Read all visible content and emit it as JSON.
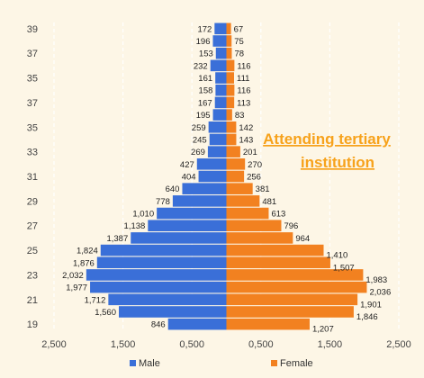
{
  "chart_data": {
    "type": "bar",
    "orientation": "horizontal-diverging",
    "y_categories": [
      "19",
      "",
      "21",
      "",
      "23",
      "",
      "25",
      "",
      "27",
      "",
      "29",
      "",
      "31",
      "",
      "33",
      "",
      "35",
      "",
      "37",
      "",
      "35",
      "",
      "37",
      "",
      "39"
    ],
    "series": [
      {
        "name": "Male",
        "color": "#3a6fd8",
        "values": [
          846,
          1560,
          1712,
          1977,
          2032,
          1876,
          1824,
          1387,
          1138,
          1010,
          778,
          640,
          404,
          427,
          269,
          245,
          259,
          195,
          167,
          158,
          161,
          232,
          153,
          196,
          172
        ]
      },
      {
        "name": "Female",
        "color": "#f28120",
        "values": [
          1207,
          1846,
          1901,
          2036,
          1983,
          1507,
          1410,
          964,
          796,
          613,
          481,
          381,
          256,
          270,
          201,
          143,
          142,
          83,
          113,
          116,
          111,
          116,
          78,
          75,
          67
        ]
      }
    ],
    "x_ticks": [
      "2,500",
      "1,500",
      "0,500",
      "0,500",
      "1,500",
      "2,500"
    ],
    "x_tick_values": [
      -2500,
      -1500,
      -500,
      500,
      1500,
      2500
    ],
    "xlim": [
      -2500,
      2500
    ],
    "legend": {
      "position": "bottom",
      "items": [
        "Male",
        "Female"
      ]
    },
    "annotation": [
      "Attending tertiary",
      "institution"
    ],
    "annotation_color": "#f7a21b",
    "grid": "dashed-vertical"
  }
}
